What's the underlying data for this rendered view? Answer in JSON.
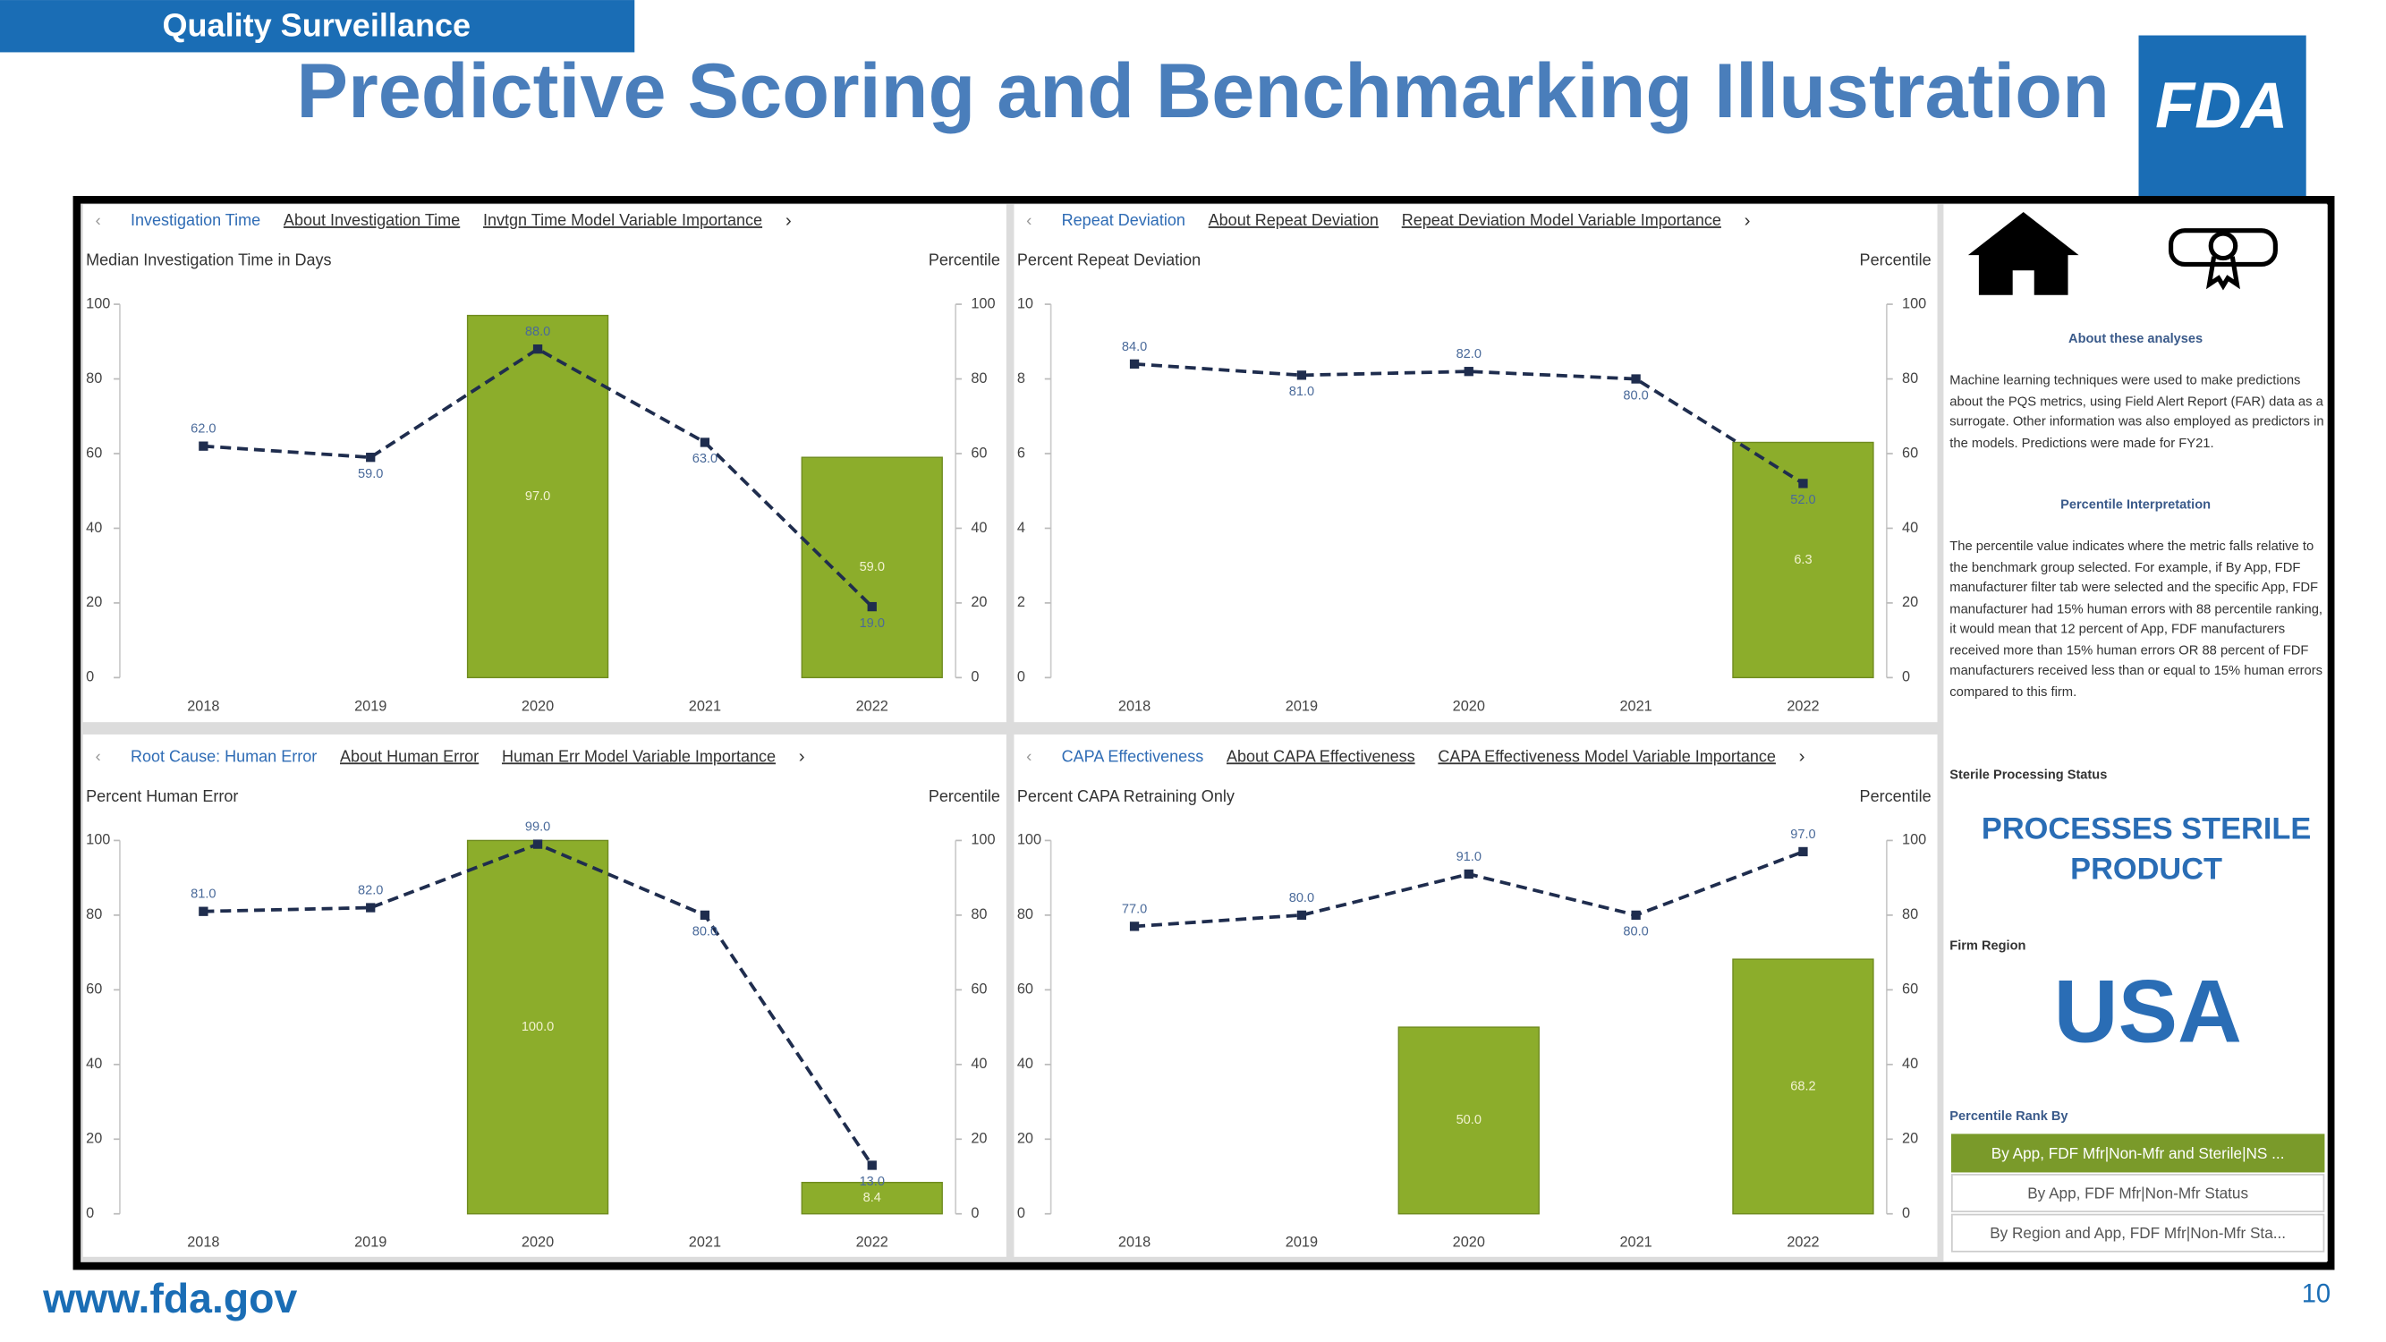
{
  "header": {
    "banner": "Quality Surveillance",
    "title": "Predictive Scoring and Benchmarking Illustration",
    "logo": "FDA"
  },
  "footer": {
    "url": "www.fda.gov",
    "page": "10"
  },
  "chart_data": [
    {
      "type": "combo",
      "tabs": [
        "Investigation Time",
        "About Investigation Time",
        "Invtgn Time Model Variable Importance"
      ],
      "ylabel": "Median Investigation Time in Days",
      "y2label": "Percentile",
      "categories": [
        "2018",
        "2019",
        "2020",
        "2021",
        "2022"
      ],
      "ylim": [
        0,
        100
      ],
      "yticks": [
        0,
        20,
        40,
        60,
        80,
        100
      ],
      "y2lim": [
        0,
        100
      ],
      "y2ticks": [
        0,
        20,
        40,
        60,
        80,
        100
      ],
      "series": [
        {
          "type": "bar",
          "color": "#8cad2b",
          "values": [
            null,
            null,
            97,
            null,
            59
          ],
          "value_labels": [
            null,
            null,
            "97.0",
            null,
            "59.0"
          ]
        },
        {
          "type": "line",
          "axis": "y2",
          "color": "#1f2d4e",
          "values": [
            62,
            59,
            88,
            63,
            19
          ],
          "value_labels": [
            "62.0",
            "59.0",
            "88.0",
            "63.0",
            "19.0"
          ]
        }
      ]
    },
    {
      "type": "combo",
      "tabs": [
        "Repeat Deviation",
        "About Repeat Deviation",
        "Repeat Deviation Model Variable Importance"
      ],
      "ylabel": "Percent Repeat Deviation",
      "y2label": "Percentile",
      "categories": [
        "2018",
        "2019",
        "2020",
        "2021",
        "2022"
      ],
      "ylim": [
        0,
        10
      ],
      "yticks": [
        0,
        2,
        4,
        6,
        8,
        10
      ],
      "y2lim": [
        0,
        100
      ],
      "y2ticks": [
        0,
        20,
        40,
        60,
        80,
        100
      ],
      "series": [
        {
          "type": "bar",
          "color": "#8cad2b",
          "values": [
            null,
            null,
            null,
            null,
            6.3
          ]
        },
        {
          "type": "line",
          "axis": "y2",
          "color": "#1f2d4e",
          "values": [
            84,
            81,
            82,
            80,
            52
          ],
          "value_labels": [
            "84.0",
            "81.0",
            "82.0",
            "80.0",
            "52.0"
          ]
        }
      ]
    },
    {
      "type": "combo",
      "tabs": [
        "Root Cause: Human Error",
        "About Human Error",
        "Human Err Model Variable Importance"
      ],
      "ylabel": "Percent Human Error",
      "y2label": "Percentile",
      "categories": [
        "2018",
        "2019",
        "2020",
        "2021",
        "2022"
      ],
      "ylim": [
        0,
        100
      ],
      "yticks": [
        0,
        20,
        40,
        60,
        80,
        100
      ],
      "y2lim": [
        0,
        100
      ],
      "y2ticks": [
        0,
        20,
        40,
        60,
        80,
        100
      ],
      "series": [
        {
          "type": "bar",
          "color": "#8cad2b",
          "values": [
            null,
            null,
            100,
            null,
            8.4
          ],
          "value_labels": [
            null,
            null,
            "100.0",
            null,
            "8.4"
          ]
        },
        {
          "type": "line",
          "axis": "y2",
          "color": "#1f2d4e",
          "values": [
            81,
            82,
            99,
            80,
            13
          ],
          "value_labels": [
            "81.0",
            "82.0",
            "99.0",
            "80.0",
            "13.0"
          ]
        }
      ]
    },
    {
      "type": "combo",
      "tabs": [
        "CAPA Effectiveness",
        "About CAPA Effectiveness",
        "CAPA Effectiveness Model Variable Importance"
      ],
      "ylabel": "Percent CAPA Retraining Only",
      "y2label": "Percentile",
      "categories": [
        "2018",
        "2019",
        "2020",
        "2021",
        "2022"
      ],
      "ylim": [
        0,
        100
      ],
      "yticks": [
        0,
        20,
        40,
        60,
        80,
        100
      ],
      "y2lim": [
        0,
        100
      ],
      "y2ticks": [
        0,
        20,
        40,
        60,
        80,
        100
      ],
      "series": [
        {
          "type": "bar",
          "color": "#8cad2b",
          "values": [
            null,
            null,
            50,
            null,
            68.2
          ],
          "value_labels": [
            null,
            null,
            "50.0",
            null,
            "68.2"
          ]
        },
        {
          "type": "line",
          "axis": "y2",
          "color": "#1f2d4e",
          "values": [
            77,
            80,
            91,
            80,
            97
          ],
          "value_labels": [
            "77.0",
            "80.0",
            "91.0",
            "80.0",
            "97.0"
          ]
        }
      ]
    }
  ],
  "sidebar": {
    "about_title": "About these analyses",
    "about_text": "Machine learning techniques were used to make predictions about the PQS metrics, using Field Alert Report (FAR) data as a surrogate. Other information was also employed as predictors in the models. Predictions were made for FY21.",
    "interp_title": "Percentile Interpretation",
    "interp_text": "The percentile value indicates where the metric falls relative to the benchmark group selected. For example, if By App, FDF manufacturer filter tab were selected and the specific App, FDF manufacturer had 15% human errors with 88 percentile ranking, it would mean that 12 percent of App, FDF manufacturers received more than 15% human errors OR 88 percent of FDF manufacturers received less than or equal to 15% human errors compared to this firm.",
    "sterile_label": "Sterile Processing Status",
    "sterile_value": "PROCESSES STERILE PRODUCT",
    "region_label": "Firm Region",
    "region_value": "USA",
    "rank_label": "Percentile Rank By",
    "rank_options": [
      "By App, FDF Mfr|Non-Mfr and Sterile|NS ...",
      "By App, FDF Mfr|Non-Mfr Status",
      "By Region and App, FDF Mfr|Non-Mfr Sta..."
    ]
  }
}
